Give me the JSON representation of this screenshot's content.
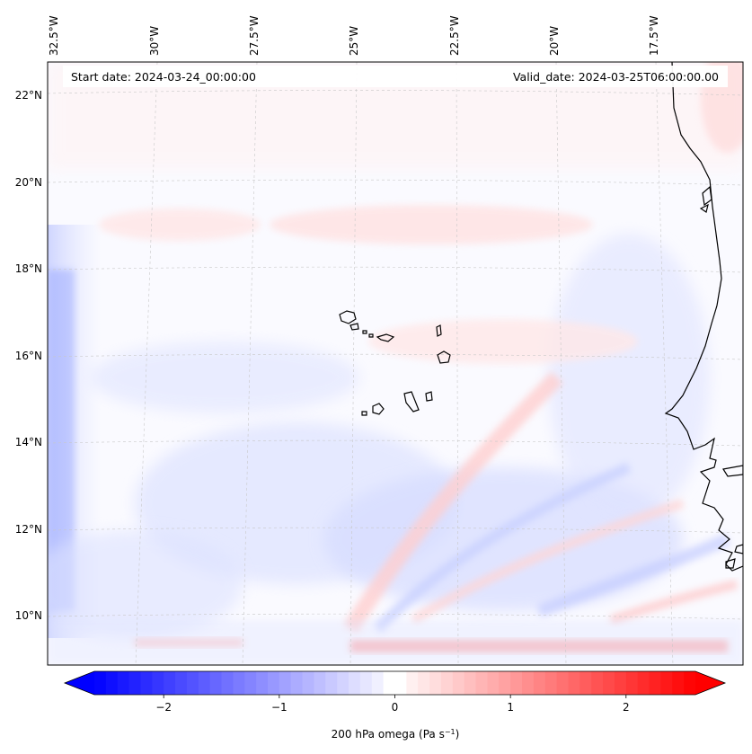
{
  "header": {
    "start_date": "Start date: 2024-03-24_00:00:00",
    "valid_date": "Valid_date: 2024-03-25T06:00:00.00"
  },
  "map": {
    "lon_labels": [
      "32.5°W",
      "30°W",
      "27.5°W",
      "25°W",
      "22.5°W",
      "20°W",
      "17.5°W"
    ],
    "lat_labels": [
      "22°N",
      "20°N",
      "18°N",
      "16°N",
      "14°N",
      "12°N",
      "10°N"
    ],
    "gridlines": "dashed"
  },
  "colorbar": {
    "label_text": "200 hPa omega (Pa s",
    "label_exp": "−1",
    "label_close": ")",
    "ticks": [
      {
        "value": -2,
        "label": "−2"
      },
      {
        "value": -1,
        "label": "−1"
      },
      {
        "value": 0,
        "label": "0"
      },
      {
        "value": 1,
        "label": "1"
      },
      {
        "value": 2,
        "label": "2"
      }
    ],
    "vmin": -2.6,
    "vmax": 2.6,
    "colormap": "bwr",
    "extend": "both"
  },
  "colors": {
    "neg": "#0000ff",
    "zero": "#ffffff",
    "pos": "#ff0000",
    "coast": "#000000"
  }
}
